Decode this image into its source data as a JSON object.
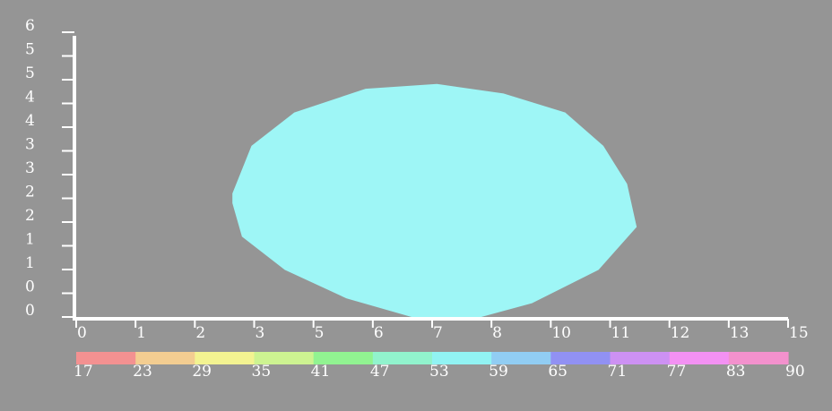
{
  "chart_data": {
    "type": "area",
    "title": "",
    "xlabel": "",
    "ylabel": "",
    "background": "#959595",
    "axis_color": "#ffffff",
    "xlim": [
      0,
      15
    ],
    "ylim": [
      0,
      6
    ],
    "grid": false,
    "x_tick_labels": [
      "0",
      "1",
      "2",
      "3",
      "5",
      "6",
      "7",
      "8",
      "10",
      "11",
      "12",
      "13",
      "15"
    ],
    "y_tick_labels": [
      "0",
      "0",
      "1",
      "1",
      "2",
      "2",
      "3",
      "3",
      "4",
      "4",
      "5",
      "5",
      "6"
    ],
    "series": [
      {
        "fill": "#9ef6f6",
        "outline": [
          [
            3.3,
            2.6
          ],
          [
            3.7,
            3.6
          ],
          [
            4.6,
            4.3
          ],
          [
            6.1,
            4.8
          ],
          [
            7.6,
            4.9
          ],
          [
            9.0,
            4.7
          ],
          [
            10.3,
            4.3
          ],
          [
            11.1,
            3.6
          ],
          [
            11.6,
            2.8
          ],
          [
            11.8,
            1.9
          ],
          [
            11.0,
            1.0
          ],
          [
            9.6,
            0.3
          ],
          [
            8.5,
            0.0
          ],
          [
            7.1,
            0.0
          ],
          [
            5.7,
            0.4
          ],
          [
            4.4,
            1.0
          ],
          [
            3.5,
            1.7
          ],
          [
            3.3,
            2.4
          ]
        ]
      }
    ]
  },
  "colorbar": {
    "tick_labels": [
      "17",
      "23",
      "29",
      "35",
      "41",
      "47",
      "53",
      "59",
      "65",
      "71",
      "77",
      "83",
      "90"
    ],
    "colors": [
      "#f39191",
      "#f3cd91",
      "#f3f391",
      "#cdf391",
      "#91f391",
      "#91f3cd",
      "#91f3f3",
      "#91cdf3",
      "#9191f3",
      "#cd91f3",
      "#f391f3",
      "#f391cd"
    ]
  }
}
